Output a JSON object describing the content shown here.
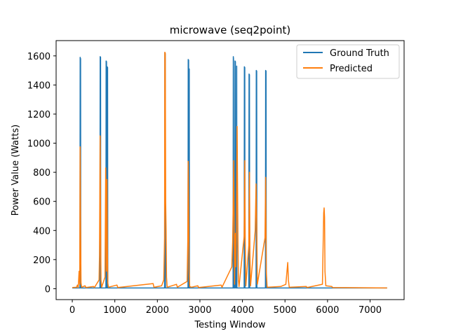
{
  "chart_data": {
    "type": "line",
    "title": "microwave (seq2point)",
    "xlabel": "Testing Window",
    "ylabel": "Power Value (Watts)",
    "xlim": [
      -380,
      7800
    ],
    "ylim": [
      -75,
      1705
    ],
    "x_ticks": [
      0,
      1000,
      2000,
      3000,
      4000,
      5000,
      6000,
      7000
    ],
    "y_ticks": [
      0,
      200,
      400,
      600,
      800,
      1000,
      1200,
      1400,
      1600
    ],
    "grid": false,
    "legend_position": "top-right",
    "series": [
      {
        "name": "Ground Truth",
        "color": "#1f77b4",
        "points": [
          [
            0,
            5
          ],
          [
            180,
            5
          ],
          [
            185,
            1590
          ],
          [
            195,
            1580
          ],
          [
            200,
            5
          ],
          [
            650,
            5
          ],
          [
            655,
            1595
          ],
          [
            665,
            1590
          ],
          [
            670,
            5
          ],
          [
            790,
            5
          ],
          [
            795,
            1565
          ],
          [
            805,
            1560
          ],
          [
            810,
            5
          ],
          [
            815,
            5
          ],
          [
            820,
            1525
          ],
          [
            830,
            1520
          ],
          [
            835,
            5
          ],
          [
            2170,
            5
          ],
          [
            2175,
            1620
          ],
          [
            2185,
            1615
          ],
          [
            2190,
            5
          ],
          [
            2720,
            5
          ],
          [
            2725,
            1575
          ],
          [
            2735,
            1570
          ],
          [
            2740,
            5
          ],
          [
            2745,
            5
          ],
          [
            2750,
            1510
          ],
          [
            2755,
            5
          ],
          [
            3780,
            5
          ],
          [
            3785,
            1595
          ],
          [
            3790,
            1580
          ],
          [
            3795,
            5
          ],
          [
            3820,
            5
          ],
          [
            3825,
            1565
          ],
          [
            3835,
            1560
          ],
          [
            3840,
            5
          ],
          [
            3860,
            5
          ],
          [
            3865,
            1530
          ],
          [
            3870,
            5
          ],
          [
            4040,
            5
          ],
          [
            4045,
            1525
          ],
          [
            4055,
            1520
          ],
          [
            4060,
            5
          ],
          [
            4150,
            5
          ],
          [
            4155,
            1475
          ],
          [
            4165,
            1470
          ],
          [
            4170,
            5
          ],
          [
            4320,
            5
          ],
          [
            4325,
            1500
          ],
          [
            4335,
            1495
          ],
          [
            4340,
            5
          ],
          [
            4540,
            5
          ],
          [
            4545,
            1500
          ],
          [
            4555,
            1495
          ],
          [
            4560,
            5
          ],
          [
            7400,
            5
          ]
        ]
      },
      {
        "name": "Predicted",
        "color": "#ff7f0e",
        "points": [
          [
            0,
            8
          ],
          [
            100,
            10
          ],
          [
            120,
            25
          ],
          [
            140,
            8
          ],
          [
            160,
            120
          ],
          [
            175,
            30
          ],
          [
            185,
            975
          ],
          [
            195,
            400
          ],
          [
            205,
            40
          ],
          [
            220,
            10
          ],
          [
            300,
            20
          ],
          [
            320,
            8
          ],
          [
            500,
            15
          ],
          [
            520,
            8
          ],
          [
            630,
            60
          ],
          [
            640,
            230
          ],
          [
            655,
            1050
          ],
          [
            665,
            420
          ],
          [
            675,
            60
          ],
          [
            690,
            10
          ],
          [
            770,
            80
          ],
          [
            785,
            830
          ],
          [
            795,
            600
          ],
          [
            805,
            120
          ],
          [
            815,
            750
          ],
          [
            825,
            300
          ],
          [
            835,
            40
          ],
          [
            850,
            10
          ],
          [
            1050,
            25
          ],
          [
            1070,
            8
          ],
          [
            1900,
            35
          ],
          [
            1920,
            10
          ],
          [
            2100,
            20
          ],
          [
            2150,
            60
          ],
          [
            2170,
            350
          ],
          [
            2175,
            1625
          ],
          [
            2185,
            1620
          ],
          [
            2195,
            600
          ],
          [
            2205,
            400
          ],
          [
            2215,
            80
          ],
          [
            2230,
            10
          ],
          [
            2450,
            30
          ],
          [
            2470,
            10
          ],
          [
            2700,
            50
          ],
          [
            2715,
            330
          ],
          [
            2725,
            875
          ],
          [
            2735,
            560
          ],
          [
            2745,
            120
          ],
          [
            2760,
            15
          ],
          [
            2800,
            10
          ],
          [
            2950,
            20
          ],
          [
            2970,
            8
          ],
          [
            3500,
            25
          ],
          [
            3520,
            10
          ],
          [
            3750,
            150
          ],
          [
            3770,
            320
          ],
          [
            3785,
            625
          ],
          [
            3795,
            880
          ],
          [
            3805,
            500
          ],
          [
            3815,
            30
          ],
          [
            3825,
            330
          ],
          [
            3835,
            380
          ],
          [
            3845,
            150
          ],
          [
            3860,
            500
          ],
          [
            3875,
            1115
          ],
          [
            3885,
            700
          ],
          [
            3895,
            300
          ],
          [
            3905,
            60
          ],
          [
            3920,
            15
          ],
          [
            4040,
            360
          ],
          [
            4055,
            880
          ],
          [
            4065,
            320
          ],
          [
            4080,
            20
          ],
          [
            4150,
            300
          ],
          [
            4165,
            800
          ],
          [
            4175,
            250
          ],
          [
            4190,
            20
          ],
          [
            4300,
            400
          ],
          [
            4320,
            720
          ],
          [
            4335,
            450
          ],
          [
            4350,
            30
          ],
          [
            4530,
            350
          ],
          [
            4545,
            765
          ],
          [
            4560,
            120
          ],
          [
            4580,
            10
          ],
          [
            4900,
            15
          ],
          [
            5020,
            30
          ],
          [
            5050,
            130
          ],
          [
            5065,
            180
          ],
          [
            5080,
            60
          ],
          [
            5100,
            10
          ],
          [
            5500,
            15
          ],
          [
            5520,
            8
          ],
          [
            5880,
            30
          ],
          [
            5900,
            350
          ],
          [
            5910,
            520
          ],
          [
            5920,
            555
          ],
          [
            5930,
            490
          ],
          [
            5940,
            120
          ],
          [
            5960,
            20
          ],
          [
            6100,
            15
          ],
          [
            6120,
            8
          ],
          [
            7400,
            5
          ]
        ]
      }
    ]
  }
}
